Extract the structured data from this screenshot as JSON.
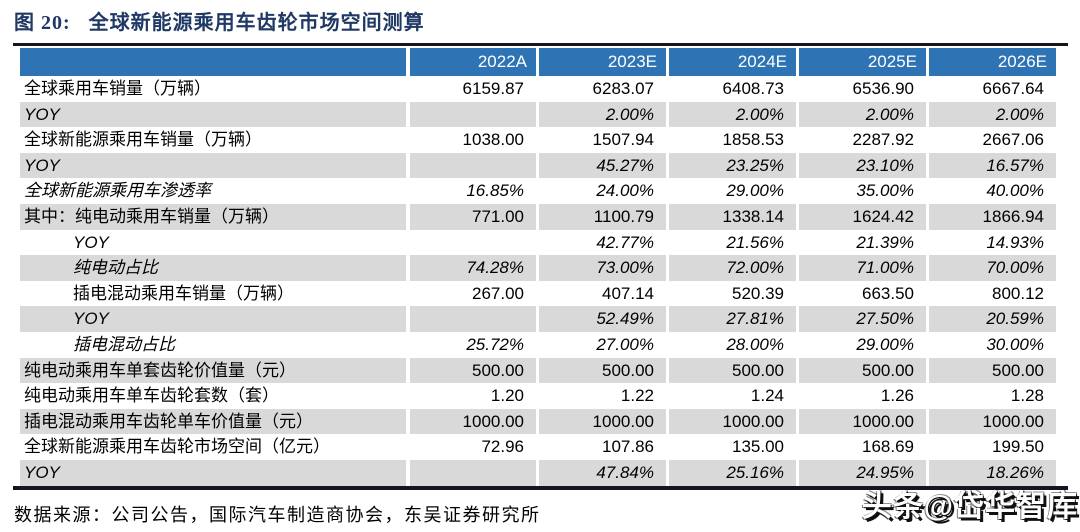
{
  "figure": {
    "label": "图 20:",
    "title": "全球新能源乘用车齿轮市场空间测算"
  },
  "table": {
    "columns": [
      "2022A",
      "2023E",
      "2024E",
      "2025E",
      "2026E"
    ],
    "rows": [
      {
        "label": "全球乘用车销量（万辆）",
        "values": [
          "6159.87",
          "6283.07",
          "6408.73",
          "6536.90",
          "6667.64"
        ],
        "italic": false,
        "indent": 0,
        "shaded": false
      },
      {
        "label": "YOY",
        "values": [
          "",
          "2.00%",
          "2.00%",
          "2.00%",
          "2.00%"
        ],
        "italic": true,
        "indent": 0,
        "shaded": true
      },
      {
        "label": "全球新能源乘用车销量（万辆）",
        "values": [
          "1038.00",
          "1507.94",
          "1858.53",
          "2287.92",
          "2667.06"
        ],
        "italic": false,
        "indent": 0,
        "shaded": false
      },
      {
        "label": "YOY",
        "values": [
          "",
          "45.27%",
          "23.25%",
          "23.10%",
          "16.57%"
        ],
        "italic": true,
        "indent": 0,
        "shaded": true
      },
      {
        "label": "全球新能源乘用车渗透率",
        "values": [
          "16.85%",
          "24.00%",
          "29.00%",
          "35.00%",
          "40.00%"
        ],
        "italic": true,
        "indent": 0,
        "shaded": false
      },
      {
        "label": "其中：纯电动乘用车销量（万辆）",
        "values": [
          "771.00",
          "1100.79",
          "1338.14",
          "1624.42",
          "1866.94"
        ],
        "italic": false,
        "indent": 0,
        "shaded": true
      },
      {
        "label": "YOY",
        "values": [
          "",
          "42.77%",
          "21.56%",
          "21.39%",
          "14.93%"
        ],
        "italic": true,
        "indent": 1,
        "shaded": false
      },
      {
        "label": "纯电动占比",
        "values": [
          "74.28%",
          "73.00%",
          "72.00%",
          "71.00%",
          "70.00%"
        ],
        "italic": true,
        "indent": 1,
        "shaded": true
      },
      {
        "label": "插电混动乘用车销量（万辆）",
        "values": [
          "267.00",
          "407.14",
          "520.39",
          "663.50",
          "800.12"
        ],
        "italic": false,
        "indent": 1,
        "shaded": false
      },
      {
        "label": "YOY",
        "values": [
          "",
          "52.49%",
          "27.81%",
          "27.50%",
          "20.59%"
        ],
        "italic": true,
        "indent": 1,
        "shaded": true
      },
      {
        "label": "插电混动占比",
        "values": [
          "25.72%",
          "27.00%",
          "28.00%",
          "29.00%",
          "30.00%"
        ],
        "italic": true,
        "indent": 1,
        "shaded": false
      },
      {
        "label": "纯电动乘用车单套齿轮价值量（元）",
        "values": [
          "500.00",
          "500.00",
          "500.00",
          "500.00",
          "500.00"
        ],
        "italic": false,
        "indent": 0,
        "shaded": true
      },
      {
        "label": "纯电动乘用车单车齿轮套数（套）",
        "values": [
          "1.20",
          "1.22",
          "1.24",
          "1.26",
          "1.28"
        ],
        "italic": false,
        "indent": 0,
        "shaded": false
      },
      {
        "label": "插电混动乘用车齿轮单车价值量（元）",
        "values": [
          "1000.00",
          "1000.00",
          "1000.00",
          "1000.00",
          "1000.00"
        ],
        "italic": false,
        "indent": 0,
        "shaded": true
      },
      {
        "label": "全球新能源乘用车齿轮市场空间（亿元）",
        "values": [
          "72.96",
          "107.86",
          "135.00",
          "168.69",
          "199.50"
        ],
        "italic": false,
        "indent": 0,
        "shaded": false
      },
      {
        "label": "YOY",
        "values": [
          "",
          "47.84%",
          "25.16%",
          "24.95%",
          "18.26%"
        ],
        "italic": true,
        "indent": 0,
        "shaded": true
      }
    ]
  },
  "source": {
    "text": "数据来源：公司公告，国际汽车制造商协会，东吴证券研究所"
  },
  "watermark": {
    "text": "头条@岱华智库"
  },
  "colors": {
    "header_bg": "#2E74B5",
    "shaded_row": "#D9D9D9",
    "title_text": "#1F3864",
    "rule": "#15151D",
    "header_text": "#FFFFFF",
    "body_text": "#000000"
  }
}
